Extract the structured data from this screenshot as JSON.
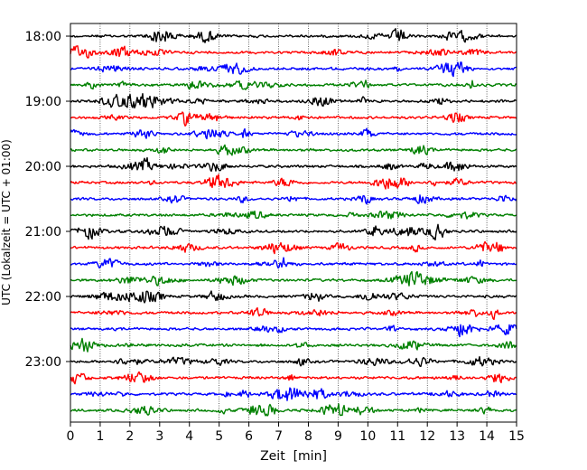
{
  "chart_data": {
    "type": "line",
    "title": "",
    "xlabel": "Zeit  [min]",
    "ylabel": "UTC (Lokalzeit = UTC + 01:00)",
    "xlim": [
      0,
      15
    ],
    "x_ticks": [
      0,
      1,
      2,
      3,
      4,
      5,
      6,
      7,
      8,
      9,
      10,
      11,
      12,
      13,
      14,
      15
    ],
    "x_tick_labels": [
      "0",
      "1",
      "2",
      "3",
      "4",
      "5",
      "6",
      "7",
      "8",
      "9",
      "10",
      "11",
      "12",
      "13",
      "14",
      "15"
    ],
    "y_tick_labels": [
      "18:00",
      "19:00",
      "20:00",
      "21:00",
      "22:00",
      "23:00"
    ],
    "grid": "vertical dotted",
    "trace_interval_min": 15,
    "trace_start": "18:00",
    "trace_count": 24,
    "trace_colors": [
      "#000000",
      "#ff0000",
      "#0000ff",
      "#008000"
    ]
  }
}
